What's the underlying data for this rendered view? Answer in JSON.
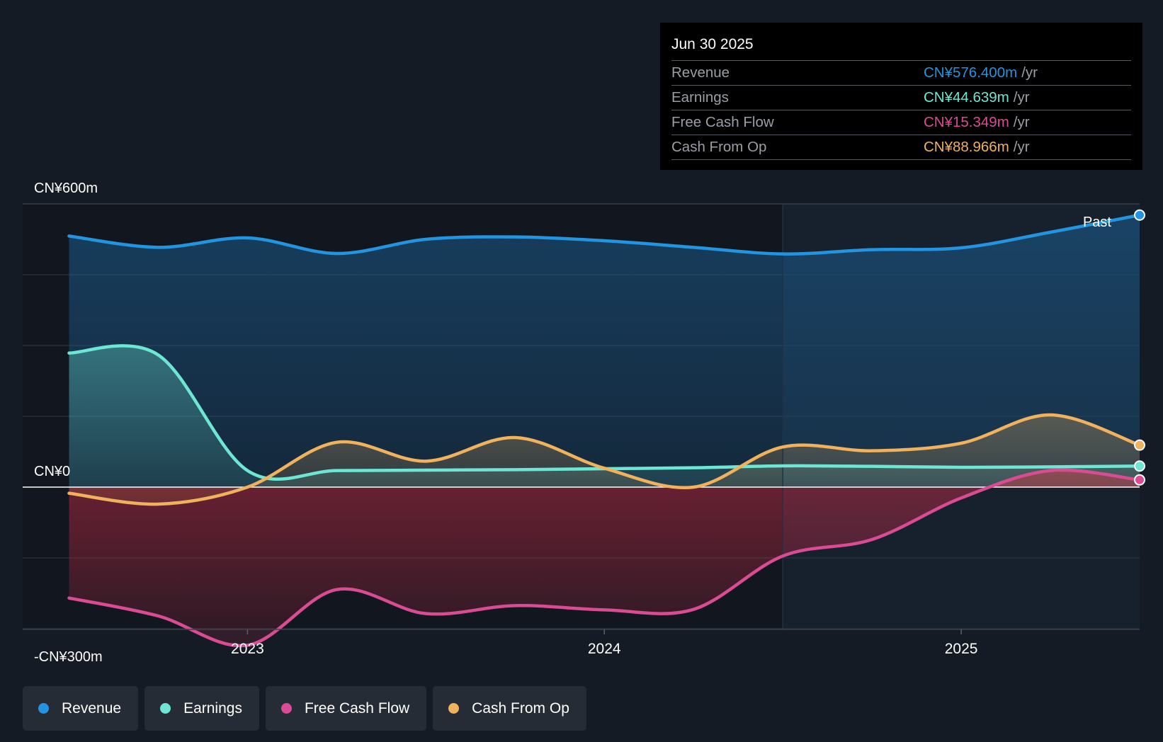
{
  "tooltip": {
    "date": "Jun 30 2025",
    "rows": [
      {
        "label": "Revenue",
        "value": "CN¥576.400m",
        "unit": "/yr",
        "color": "#2394df"
      },
      {
        "label": "Earnings",
        "value": "CN¥44.639m",
        "unit": "/yr",
        "color": "#6ee6d4"
      },
      {
        "label": "Free Cash Flow",
        "value": "CN¥15.349m",
        "unit": "/yr",
        "color": "#d94c93"
      },
      {
        "label": "Cash From Op",
        "value": "CN¥88.966m",
        "unit": "/yr",
        "color": "#f0b25c"
      }
    ]
  },
  "legend": [
    {
      "label": "Revenue",
      "color": "#2394df"
    },
    {
      "label": "Earnings",
      "color": "#6ee6d4"
    },
    {
      "label": "Free Cash Flow",
      "color": "#d94c93"
    },
    {
      "label": "Cash From Op",
      "color": "#f0b25c"
    }
  ],
  "chart_data": {
    "type": "area",
    "title": "",
    "xlabel": "",
    "ylabel": "",
    "ylim": [
      -300,
      600
    ],
    "y_tick_labels": [
      {
        "value": 600,
        "label": "CN¥600m"
      },
      {
        "value": 0,
        "label": "CN¥0"
      },
      {
        "value": -300,
        "label": "-CN¥300m"
      }
    ],
    "x_tick_labels": [
      {
        "value": 2023.0,
        "label": "2023"
      },
      {
        "value": 2024.0,
        "label": "2024"
      },
      {
        "value": 2025.0,
        "label": "2025"
      }
    ],
    "xlim": [
      2022.37,
      2025.5
    ],
    "past_divider_x": 2024.5,
    "past_label": "Past",
    "grid": true,
    "x": [
      2022.5,
      2022.75,
      2023.0,
      2023.25,
      2023.5,
      2023.75,
      2024.0,
      2024.25,
      2024.5,
      2024.75,
      2025.0,
      2025.25,
      2025.5
    ],
    "series": [
      {
        "name": "Revenue",
        "color": "#2394df",
        "values": [
          532,
          508,
          528,
          495,
          525,
          530,
          522,
          508,
          494,
          503,
          507,
          540,
          576.4
        ]
      },
      {
        "name": "Earnings",
        "color": "#6ee6d4",
        "values": [
          284,
          280,
          35,
          35,
          36,
          37,
          39,
          41,
          45,
          44,
          42,
          43,
          44.6
        ]
      },
      {
        "name": "Free Cash Flow",
        "color": "#d94c93",
        "values": [
          -235,
          -273,
          -335,
          -217,
          -268,
          -251,
          -260,
          -259,
          -146,
          -111,
          -23,
          35,
          15.3
        ]
      },
      {
        "name": "Cash From Op",
        "color": "#f0b25c",
        "values": [
          -13,
          -36,
          0,
          95,
          55,
          105,
          40,
          0,
          85,
          77,
          93,
          153,
          89
        ]
      }
    ]
  }
}
